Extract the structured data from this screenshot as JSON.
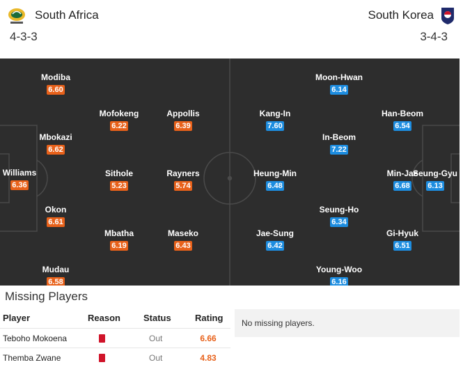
{
  "home": {
    "name": "South Africa",
    "formation": "4-3-3",
    "logo_icon": "south-africa-football-crest",
    "rating_color": "#e8611a",
    "players": [
      {
        "name": "Williams",
        "rating": "6.36"
      },
      {
        "name": "Modiba",
        "rating": "6.60"
      },
      {
        "name": "Mbokazi",
        "rating": "6.62"
      },
      {
        "name": "Okon",
        "rating": "6.61"
      },
      {
        "name": "Mudau",
        "rating": "6.58"
      },
      {
        "name": "Mofokeng",
        "rating": "6.22"
      },
      {
        "name": "Sithole",
        "rating": "5.23"
      },
      {
        "name": "Mbatha",
        "rating": "6.19"
      },
      {
        "name": "Appollis",
        "rating": "6.39"
      },
      {
        "name": "Rayners",
        "rating": "5.74"
      },
      {
        "name": "Maseko",
        "rating": "6.43"
      }
    ]
  },
  "away": {
    "name": "South Korea",
    "formation": "3-4-3",
    "logo_icon": "korea-football-crest",
    "rating_color": "#1d8de0",
    "players": [
      {
        "name": "Seung-Gyu",
        "rating": "6.13"
      },
      {
        "name": "Gi-Hyuk",
        "rating": "6.51"
      },
      {
        "name": "Min-Jae",
        "rating": "6.68"
      },
      {
        "name": "Han-Beom",
        "rating": "6.54"
      },
      {
        "name": "Young-Woo",
        "rating": "6.16"
      },
      {
        "name": "Seung-Ho",
        "rating": "6.34"
      },
      {
        "name": "In-Beom",
        "rating": "7.22"
      },
      {
        "name": "Moon-Hwan",
        "rating": "6.14"
      },
      {
        "name": "Jae-Sung",
        "rating": "6.42"
      },
      {
        "name": "Heung-Min",
        "rating": "6.48"
      },
      {
        "name": "Kang-In",
        "rating": "7.60"
      }
    ]
  },
  "missing": {
    "title": "Missing Players",
    "headers": {
      "player": "Player",
      "reason": "Reason",
      "status": "Status",
      "rating": "Rating"
    },
    "home_rows": [
      {
        "player": "Teboho Mokoena",
        "reason_icon": "red-card-icon",
        "status": "Out",
        "rating": "6.66"
      },
      {
        "player": "Themba Zwane",
        "reason_icon": "red-card-icon",
        "status": "Out",
        "rating": "4.83"
      }
    ],
    "away_message": "No missing players."
  }
}
